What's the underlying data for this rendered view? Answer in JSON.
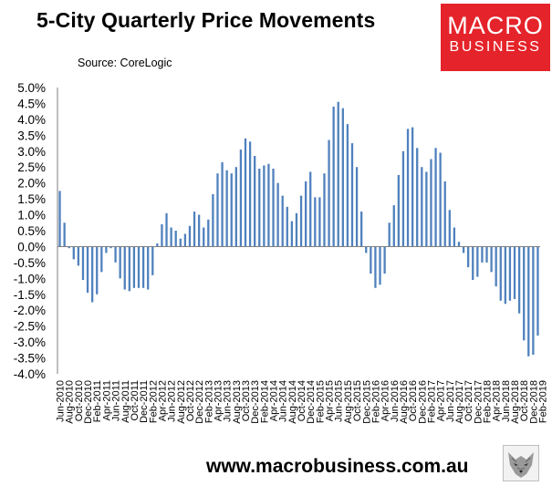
{
  "title": "5-City Quarterly Price Movements",
  "source": "Source: CoreLogic",
  "logo": {
    "line1": "MACRO",
    "line2": "BUSINESS"
  },
  "footer": {
    "url": "www.macrobusiness.com.au"
  },
  "colors": {
    "bar": "#4f81bd",
    "logo_bg": "#e5232a"
  },
  "chart_data": {
    "type": "bar",
    "title": "5-City Quarterly Price Movements",
    "source": "Source: CoreLogic",
    "frequency": "monthly",
    "x_start": "2010-06",
    "x_end": "2019-03",
    "ylim": [
      -4.0,
      5.0
    ],
    "yticks": [
      "5.0%",
      "4.5%",
      "4.0%",
      "3.5%",
      "3.0%",
      "2.5%",
      "2.0%",
      "1.5%",
      "1.0%",
      "0.5%",
      "0.0%",
      "-0.5%",
      "-1.0%",
      "-1.5%",
      "-2.0%",
      "-2.5%",
      "-3.0%",
      "-3.5%",
      "-4.0%"
    ],
    "xtick_labels": [
      "Jun-2010",
      "Aug-2010",
      "Oct-2010",
      "Dec-2010",
      "Feb-2011",
      "Apr-2011",
      "Jun-2011",
      "Aug-2011",
      "Oct-2011",
      "Dec-2011",
      "Feb-2012",
      "Apr-2012",
      "Jun-2012",
      "Aug-2012",
      "Oct-2012",
      "Dec-2012",
      "Feb-2013",
      "Apr-2013",
      "Jun-2013",
      "Aug-2013",
      "Oct-2013",
      "Dec-2013",
      "Feb-2014",
      "Apr-2014",
      "Jun-2014",
      "Aug-2014",
      "Oct-2014",
      "Dec-2014",
      "Feb-2015",
      "Apr-2015",
      "Jun-2015",
      "Aug-2015",
      "Oct-2015",
      "Dec-2015",
      "Feb-2016",
      "Apr-2016",
      "Jun-2016",
      "Aug-2016",
      "Oct-2016",
      "Dec-2016",
      "Feb-2017",
      "Apr-2017",
      "Jun-2017",
      "Aug-2017",
      "Oct-2017",
      "Dec-2017",
      "Feb-2018",
      "Apr-2018",
      "Jun-2018",
      "Aug-2018",
      "Oct-2018",
      "Dec-2018",
      "Feb-2019"
    ],
    "values": [
      1.75,
      0.75,
      -0.05,
      -0.4,
      -0.6,
      -1.05,
      -1.45,
      -1.75,
      -1.5,
      -0.8,
      -0.2,
      -0.05,
      -0.5,
      -1.0,
      -1.35,
      -1.4,
      -1.3,
      -1.3,
      -1.3,
      -1.35,
      -0.9,
      0.1,
      0.7,
      1.05,
      0.6,
      0.5,
      0.25,
      0.4,
      0.65,
      1.1,
      1.0,
      0.6,
      0.85,
      1.65,
      2.3,
      2.65,
      2.4,
      2.3,
      2.5,
      3.05,
      3.4,
      3.3,
      2.85,
      2.45,
      2.55,
      2.6,
      2.45,
      2.0,
      1.6,
      1.25,
      0.8,
      1.05,
      1.6,
      2.05,
      2.35,
      1.55,
      1.55,
      2.3,
      3.35,
      4.4,
      4.55,
      4.35,
      3.85,
      3.25,
      2.5,
      1.1,
      -0.2,
      -0.85,
      -1.3,
      -1.2,
      -0.85,
      0.75,
      1.3,
      2.25,
      3.0,
      3.7,
      3.75,
      3.1,
      2.5,
      2.35,
      2.75,
      3.1,
      2.95,
      2.05,
      1.15,
      0.6,
      0.15,
      -0.2,
      -0.65,
      -1.05,
      -0.95,
      -0.5,
      -0.5,
      -0.8,
      -1.25,
      -1.7,
      -1.8,
      -1.7,
      -1.65,
      -2.1,
      -2.95,
      -3.45,
      -3.4,
      -2.8
    ]
  }
}
